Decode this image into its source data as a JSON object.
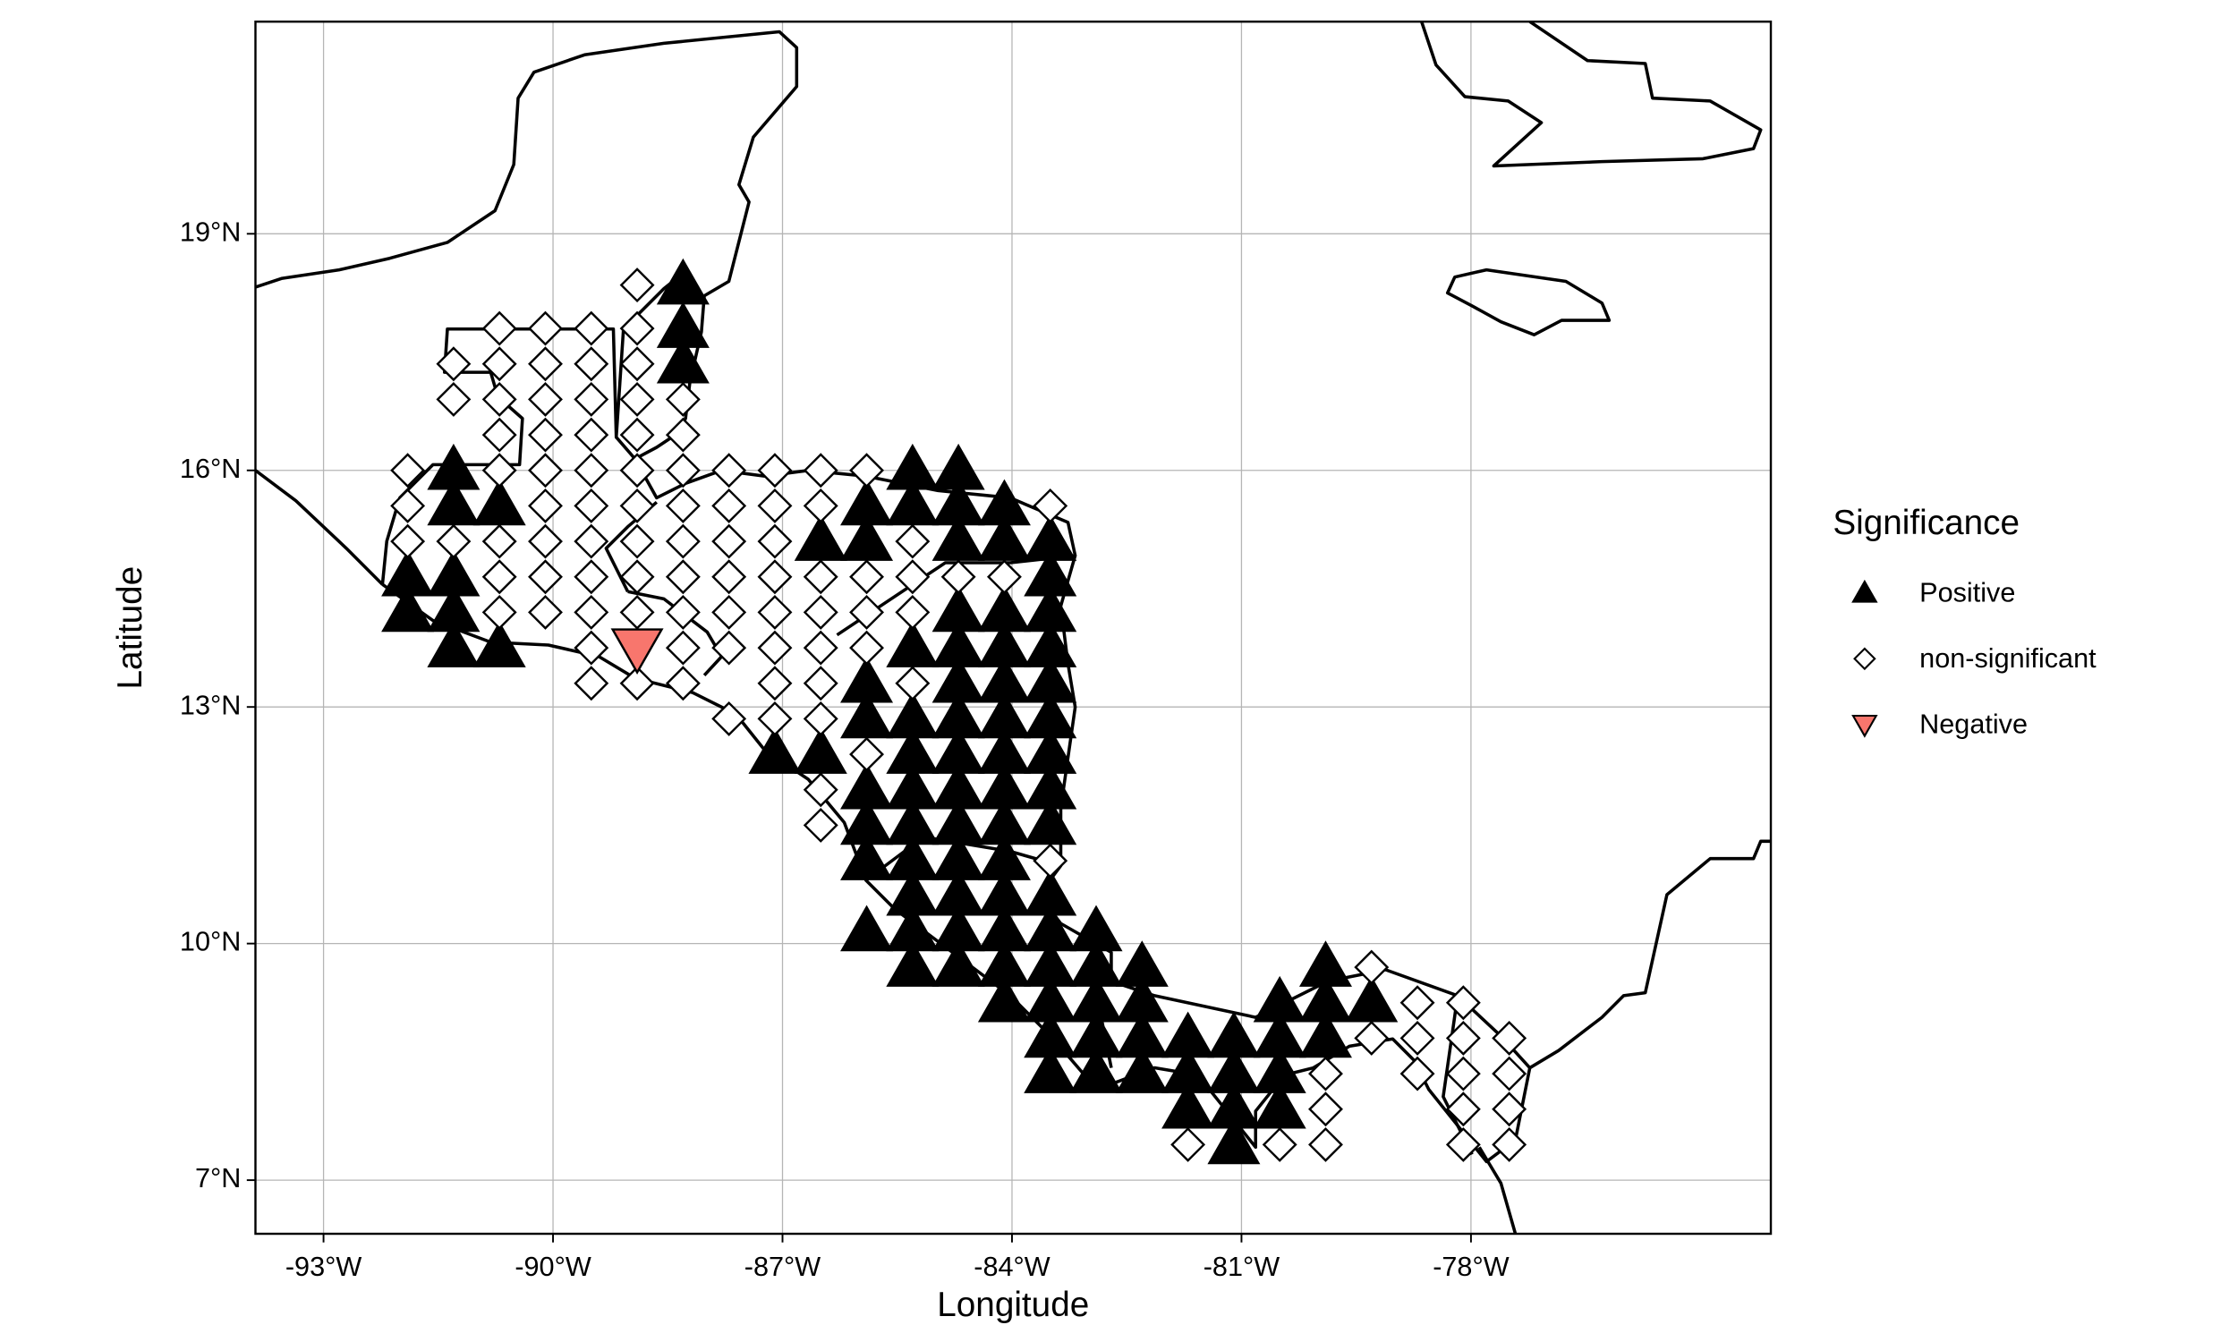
{
  "chart_data": {
    "type": "scatter",
    "x_label": "Longitude",
    "y_label": "Latitude",
    "legend_title": "Significance",
    "xlim": [
      -93.89,
      -74.08
    ],
    "ylim": [
      6.32,
      21.69
    ],
    "xticks": [
      {
        "value": -93,
        "label": "-93°W"
      },
      {
        "value": -90,
        "label": "-90°W"
      },
      {
        "value": -87,
        "label": "-87°W"
      },
      {
        "value": -84,
        "label": "-84°W"
      },
      {
        "value": -81,
        "label": "-81°W"
      },
      {
        "value": -78,
        "label": "-78°W"
      }
    ],
    "yticks": [
      {
        "value": 7,
        "label": "7°N"
      },
      {
        "value": 10,
        "label": "10°N"
      },
      {
        "value": 13,
        "label": "13°N"
      },
      {
        "value": 16,
        "label": "16°N"
      },
      {
        "value": 19,
        "label": "19°N"
      }
    ],
    "grid": true,
    "legend": "right",
    "series": [
      {
        "name": "Positive",
        "color": "#000000",
        "marker": "triangle-up",
        "x": [
          -88.3,
          -88.3,
          -88.3,
          -91.3,
          -85.3,
          -84.7,
          -91.3,
          -90.7,
          -85.9,
          -85.3,
          -84.7,
          -84.1,
          -86.5,
          -85.9,
          -84.7,
          -84.1,
          -83.5,
          -91.9,
          -91.3,
          -83.5,
          -91.9,
          -91.3,
          -84.7,
          -84.1,
          -83.5,
          -91.3,
          -90.7,
          -85.3,
          -84.7,
          -84.1,
          -83.5,
          -85.9,
          -84.7,
          -84.1,
          -83.5,
          -85.9,
          -85.3,
          -84.7,
          -84.1,
          -83.5,
          -87.1,
          -86.5,
          -85.3,
          -84.7,
          -84.1,
          -83.5,
          -85.9,
          -85.3,
          -84.7,
          -84.1,
          -83.5,
          -85.9,
          -85.3,
          -84.7,
          -84.1,
          -83.5,
          -85.9,
          -85.3,
          -84.7,
          -84.1,
          -85.3,
          -84.7,
          -84.1,
          -83.5,
          -85.9,
          -85.3,
          -84.7,
          -84.1,
          -83.5,
          -82.9,
          -85.3,
          -84.7,
          -84.1,
          -83.5,
          -82.9,
          -82.3,
          -79.9,
          -84.1,
          -83.5,
          -82.9,
          -82.3,
          -80.5,
          -79.9,
          -79.3,
          -83.5,
          -82.9,
          -82.3,
          -81.7,
          -81.1,
          -80.5,
          -79.9,
          -83.5,
          -82.9,
          -82.3,
          -81.7,
          -81.1,
          -80.5,
          -81.7,
          -81.1,
          -80.5,
          -81.1
        ],
        "values": [
          18.35,
          17.8,
          17.35,
          16,
          16,
          16,
          15.55,
          15.55,
          15.55,
          15.55,
          15.55,
          15.55,
          15.1,
          15.1,
          15.1,
          15.1,
          15.1,
          14.65,
          14.65,
          14.65,
          14.2,
          14.2,
          14.2,
          14.2,
          14.2,
          13.75,
          13.75,
          13.75,
          13.75,
          13.75,
          13.75,
          13.3,
          13.3,
          13.3,
          13.3,
          12.85,
          12.85,
          12.85,
          12.85,
          12.85,
          12.4,
          12.4,
          12.4,
          12.4,
          12.4,
          12.4,
          11.95,
          11.95,
          11.95,
          11.95,
          11.95,
          11.5,
          11.5,
          11.5,
          11.5,
          11.5,
          11.05,
          11.05,
          11.05,
          11.05,
          10.6,
          10.6,
          10.6,
          10.6,
          10.15,
          10.15,
          10.15,
          10.15,
          10.15,
          10.15,
          9.7,
          9.7,
          9.7,
          9.7,
          9.7,
          9.7,
          9.7,
          9.25,
          9.25,
          9.25,
          9.25,
          9.25,
          9.25,
          9.25,
          8.8,
          8.8,
          8.8,
          8.8,
          8.8,
          8.8,
          8.8,
          8.35,
          8.35,
          8.35,
          8.35,
          8.35,
          8.35,
          7.9,
          7.9,
          7.9,
          7.45
        ]
      },
      {
        "name": "non-significant",
        "color": "#ffffff",
        "marker": "diamond",
        "x": [
          -88.9,
          -90.7,
          -90.1,
          -89.5,
          -88.9,
          -91.3,
          -90.7,
          -90.1,
          -89.5,
          -88.9,
          -91.3,
          -90.7,
          -90.1,
          -89.5,
          -88.9,
          -88.3,
          -90.7,
          -90.1,
          -89.5,
          -88.9,
          -88.3,
          -91.9,
          -90.7,
          -90.1,
          -89.5,
          -88.9,
          -88.3,
          -87.7,
          -87.1,
          -86.5,
          -85.9,
          -91.9,
          -90.1,
          -89.5,
          -88.9,
          -88.3,
          -87.7,
          -87.1,
          -86.5,
          -83.5,
          -91.9,
          -91.3,
          -90.7,
          -90.1,
          -89.5,
          -88.9,
          -88.3,
          -87.7,
          -87.1,
          -85.3,
          -90.7,
          -90.1,
          -89.5,
          -88.9,
          -88.3,
          -87.7,
          -87.1,
          -86.5,
          -85.9,
          -85.3,
          -84.7,
          -84.1,
          -90.7,
          -90.1,
          -89.5,
          -88.9,
          -88.3,
          -87.7,
          -87.1,
          -86.5,
          -85.9,
          -85.3,
          -89.5,
          -88.3,
          -87.7,
          -87.1,
          -86.5,
          -85.9,
          -89.5,
          -88.9,
          -88.3,
          -87.1,
          -86.5,
          -85.3,
          -87.7,
          -87.1,
          -86.5,
          -85.9,
          -86.5,
          -86.5,
          -83.5,
          -79.3,
          -78.7,
          -78.1,
          -79.3,
          -78.7,
          -78.1,
          -77.5,
          -79.9,
          -78.7,
          -78.1,
          -77.5,
          -79.9,
          -78.1,
          -77.5,
          -81.7,
          -80.5,
          -79.9,
          -78.1,
          -77.5
        ],
        "values": [
          18.35,
          17.8,
          17.8,
          17.8,
          17.8,
          17.35,
          17.35,
          17.35,
          17.35,
          17.35,
          16.9,
          16.9,
          16.9,
          16.9,
          16.9,
          16.9,
          16.45,
          16.45,
          16.45,
          16.45,
          16.45,
          16,
          16,
          16,
          16,
          16,
          16,
          16,
          16,
          16,
          16,
          15.55,
          15.55,
          15.55,
          15.55,
          15.55,
          15.55,
          15.55,
          15.55,
          15.55,
          15.1,
          15.1,
          15.1,
          15.1,
          15.1,
          15.1,
          15.1,
          15.1,
          15.1,
          15.1,
          14.65,
          14.65,
          14.65,
          14.65,
          14.65,
          14.65,
          14.65,
          14.65,
          14.65,
          14.65,
          14.65,
          14.65,
          14.2,
          14.2,
          14.2,
          14.2,
          14.2,
          14.2,
          14.2,
          14.2,
          14.2,
          14.2,
          13.75,
          13.75,
          13.75,
          13.75,
          13.75,
          13.75,
          13.3,
          13.3,
          13.3,
          13.3,
          13.3,
          13.3,
          12.85,
          12.85,
          12.85,
          12.4,
          11.95,
          11.5,
          11.05,
          9.7,
          9.25,
          9.25,
          8.8,
          8.8,
          8.8,
          8.8,
          8.35,
          8.35,
          8.35,
          8.35,
          7.9,
          7.9,
          7.9,
          7.45,
          7.45,
          7.45,
          7.45,
          7.45
        ]
      },
      {
        "name": "Negative",
        "color": "#F8766D",
        "marker": "triangle-down",
        "x": [
          -88.9
        ],
        "values": [
          13.75
        ]
      }
    ]
  }
}
